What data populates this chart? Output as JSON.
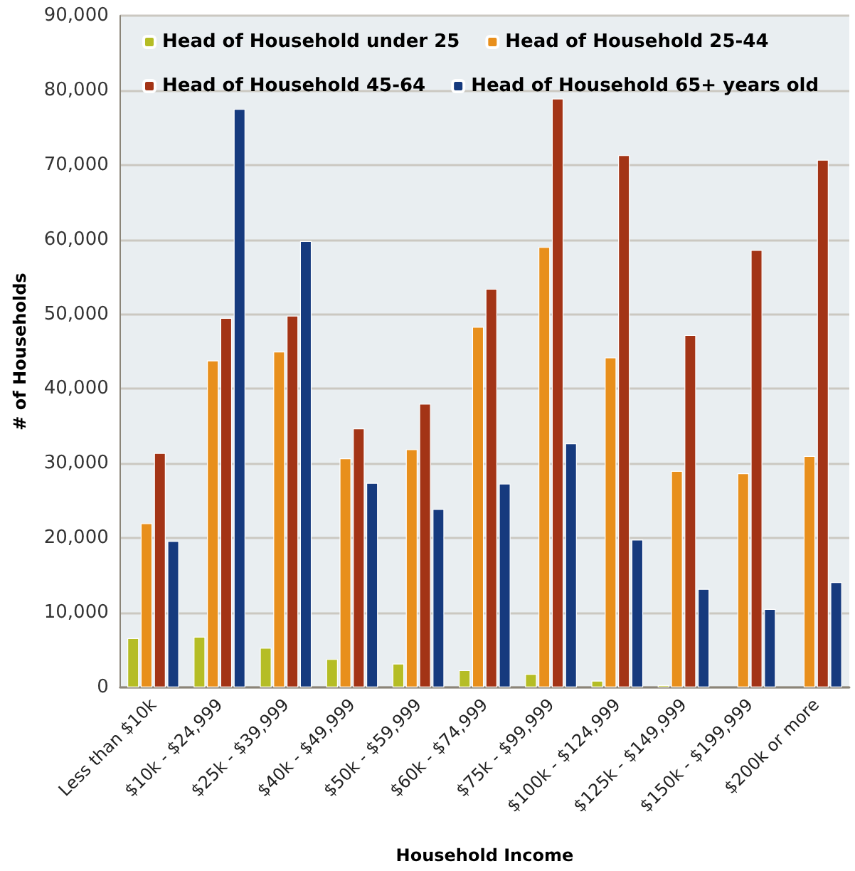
{
  "chart_data": {
    "type": "bar",
    "xlabel": "Household Income",
    "ylabel": "# of Households",
    "categories": [
      "Less than $10k",
      "$10k - $24,999",
      "$25k - $39,999",
      "$40k - $49,999",
      "$50k - $59,999",
      "$60k - $74,999",
      "$75k - $99,999",
      "$100k - $124,999",
      "$125k - $149,999",
      "$150k - $199,999",
      "$200k or more"
    ],
    "series": [
      {
        "name": "Head of Household under 25",
        "color": "#b5bd25",
        "values": [
          6600,
          6800,
          5300,
          3800,
          3200,
          2300,
          1800,
          900,
          300,
          null,
          null
        ]
      },
      {
        "name": "Head of Household 25-44",
        "color": "#e88f1c",
        "values": [
          22000,
          43800,
          45000,
          30700,
          31900,
          48300,
          59000,
          44200,
          29000,
          28700,
          31000
        ]
      },
      {
        "name": "Head of Household 45-64",
        "color": "#a33416",
        "values": [
          31400,
          49500,
          49800,
          34700,
          38000,
          53400,
          78900,
          71300,
          47200,
          58600,
          70700
        ]
      },
      {
        "name": "Head of Household 65+ years old",
        "color": "#163a7e",
        "values": [
          19600,
          77500,
          59800,
          27400,
          23900,
          27300,
          32700,
          19800,
          13200,
          10500,
          14100
        ]
      }
    ],
    "ylim": [
      0,
      90000
    ],
    "yticks": [
      0,
      {
        "value": 10000,
        "label": "10,000"
      },
      {
        "value": 20000,
        "label": "20,000"
      },
      {
        "value": 30000,
        "label": "30,000"
      },
      {
        "value": 40000,
        "label": "40,000"
      },
      {
        "value": 50000,
        "label": "50,000"
      },
      {
        "value": 60000,
        "label": "60,000"
      },
      {
        "value": 70000,
        "label": "70,000"
      },
      {
        "value": 80000,
        "label": "80,000"
      },
      {
        "value": 90000,
        "label": "90,000"
      }
    ],
    "grid": "y",
    "legend": "top"
  }
}
